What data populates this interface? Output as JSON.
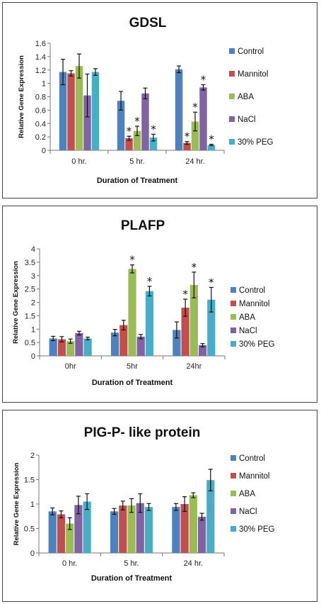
{
  "colors": [
    "#4F81BD",
    "#C0504D",
    "#9BBB59",
    "#8064A2",
    "#4BACC6"
  ],
  "chart_data": [
    {
      "type": "bar",
      "title": "GDSL",
      "xlabel": "Duration of Treatment",
      "ylabel": "Relative Gene Expression",
      "categories": [
        "0 hr.",
        "5 hr.",
        "24 hr."
      ],
      "ylim": [
        0,
        1.6
      ],
      "yticks": [
        "0",
        "0.2",
        "0.4",
        "0.6",
        "0.8",
        "1",
        "1.2",
        "1.4",
        "1.6"
      ],
      "legend_position": "right",
      "grid": false,
      "series": [
        {
          "name": "Control",
          "values": [
            1.17,
            0.74,
            1.21
          ],
          "errors": [
            0.19,
            0.14,
            0.05
          ],
          "sig": [
            false,
            false,
            false
          ]
        },
        {
          "name": "Mannitol",
          "values": [
            1.15,
            0.18,
            0.11
          ],
          "errors": [
            0.04,
            0.03,
            0.02
          ],
          "sig": [
            false,
            true,
            true
          ]
        },
        {
          "name": "ABA",
          "values": [
            1.26,
            0.29,
            0.43
          ],
          "errors": [
            0.18,
            0.07,
            0.14
          ],
          "sig": [
            false,
            true,
            true
          ]
        },
        {
          "name": "NaCl",
          "values": [
            0.82,
            0.85,
            0.94
          ],
          "errors": [
            0.32,
            0.08,
            0.04
          ],
          "sig": [
            false,
            false,
            true
          ]
        },
        {
          "name": "30% PEG",
          "values": [
            1.17,
            0.19,
            0.08
          ],
          "errors": [
            0.05,
            0.05,
            0.01
          ],
          "sig": [
            false,
            true,
            true
          ]
        }
      ]
    },
    {
      "type": "bar",
      "title": "PLAFP",
      "xlabel": "Duration of Treatment",
      "ylabel": "Relative Gene Expression",
      "categories": [
        "0hr",
        "5hr",
        "24hr"
      ],
      "ylim": [
        0,
        4
      ],
      "yticks": [
        "0",
        "0.5",
        "1",
        "1.5",
        "2",
        "2.5",
        "3",
        "3.5",
        "4"
      ],
      "legend_position": "right",
      "grid": false,
      "series": [
        {
          "name": "Control",
          "values": [
            0.65,
            0.87,
            0.97
          ],
          "errors": [
            0.08,
            0.12,
            0.3
          ],
          "sig": [
            false,
            false,
            false
          ]
        },
        {
          "name": "Mannitol",
          "values": [
            0.62,
            1.15,
            1.8
          ],
          "errors": [
            0.1,
            0.18,
            0.32
          ],
          "sig": [
            false,
            false,
            true
          ]
        },
        {
          "name": "ABA",
          "values": [
            0.55,
            3.25,
            2.65
          ],
          "errors": [
            0.08,
            0.15,
            0.48
          ],
          "sig": [
            false,
            true,
            true
          ]
        },
        {
          "name": "NaCl",
          "values": [
            0.85,
            0.72,
            0.4
          ],
          "errors": [
            0.07,
            0.08,
            0.06
          ],
          "sig": [
            false,
            false,
            false
          ]
        },
        {
          "name": "30% PEG",
          "values": [
            0.65,
            2.42,
            2.1
          ],
          "errors": [
            0.05,
            0.18,
            0.46
          ],
          "sig": [
            false,
            true,
            true
          ]
        }
      ]
    },
    {
      "type": "bar",
      "title": "PIG-P- like protein",
      "xlabel": "Duration of Treatment",
      "ylabel": "Relative Gene Expression",
      "categories": [
        "0 hr.",
        "5 hr.",
        "24 hr."
      ],
      "ylim": [
        0,
        2
      ],
      "yticks": [
        "0",
        "0.5",
        "1",
        "1.5",
        "2"
      ],
      "legend_position": "right",
      "grid": false,
      "series": [
        {
          "name": "Control",
          "values": [
            0.85,
            0.85,
            0.94
          ],
          "errors": [
            0.07,
            0.06,
            0.07
          ],
          "sig": [
            false,
            false,
            false
          ]
        },
        {
          "name": "Mannitol",
          "values": [
            0.79,
            0.97,
            1.0
          ],
          "errors": [
            0.07,
            0.09,
            0.15
          ],
          "sig": [
            false,
            false,
            false
          ]
        },
        {
          "name": "ABA",
          "values": [
            0.6,
            0.97,
            1.18
          ],
          "errors": [
            0.12,
            0.14,
            0.05
          ],
          "sig": [
            false,
            false,
            false
          ]
        },
        {
          "name": "NaCl",
          "values": [
            0.98,
            1.02,
            0.74
          ],
          "errors": [
            0.18,
            0.19,
            0.07
          ],
          "sig": [
            false,
            false,
            false
          ]
        },
        {
          "name": "30% PEG",
          "values": [
            1.05,
            0.94,
            1.49
          ],
          "errors": [
            0.16,
            0.07,
            0.22
          ],
          "sig": [
            false,
            false,
            false
          ]
        }
      ]
    }
  ]
}
